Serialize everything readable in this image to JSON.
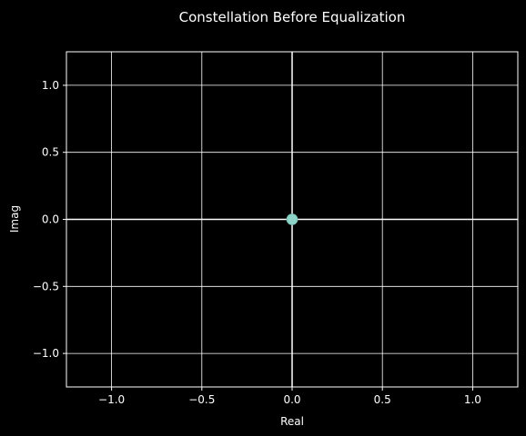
{
  "chart_data": {
    "type": "scatter",
    "title": "Constellation Before Equalization",
    "xlabel": "Real",
    "ylabel": "Imag",
    "xlim": [
      -1.25,
      1.25
    ],
    "ylim": [
      -1.25,
      1.25
    ],
    "x_ticks": [
      -1.0,
      -0.5,
      0.0,
      0.5,
      1.0
    ],
    "x_tick_labels": [
      "−1.0",
      "−0.5",
      "0.0",
      "0.5",
      "1.0"
    ],
    "y_ticks": [
      -1.0,
      -0.5,
      0.0,
      0.5,
      1.0
    ],
    "y_tick_labels": [
      "−1.0",
      "−0.5",
      "0.0",
      "0.5",
      "1.0"
    ],
    "grid": true,
    "reference_lines": {
      "x": 0,
      "y": 0
    },
    "series": [
      {
        "points": [
          {
            "x": 0.0,
            "y": 0.0
          }
        ]
      }
    ],
    "colors": {
      "background": "#000000",
      "axes": "#ffffff",
      "grid": "#ffffff",
      "point": "#8dd3c7"
    }
  }
}
